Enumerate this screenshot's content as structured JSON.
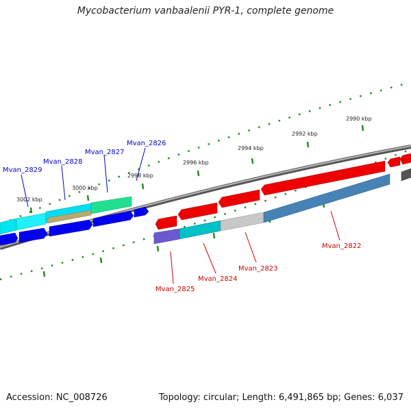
{
  "header": {
    "title": "Mycobacterium vanbaalenii PYR-1, complete genome"
  },
  "footer": {
    "accession": "Accession: NC_008726",
    "summary": "Topology: circular; Length: 6,491,865 bp; Genes: 6,037"
  },
  "colors": {
    "forward_label": "#0000cc",
    "reverse_label": "#cc0000",
    "tick": "#228b22",
    "backbone": "#8a8a8a"
  },
  "scale_labels": [
    "2990 kbp",
    "2992 kbp",
    "2994 kbp",
    "2996 kbp",
    "2998 kbp",
    "3000 kbp",
    "3002 kbp"
  ],
  "forward_genes": [
    "Mvan_2826",
    "Mvan_2827",
    "Mvan_2828",
    "Mvan_2829"
  ],
  "reverse_genes": [
    "Mvan_2822",
    "Mvan_2823",
    "Mvan_2824",
    "Mvan_2825"
  ]
}
